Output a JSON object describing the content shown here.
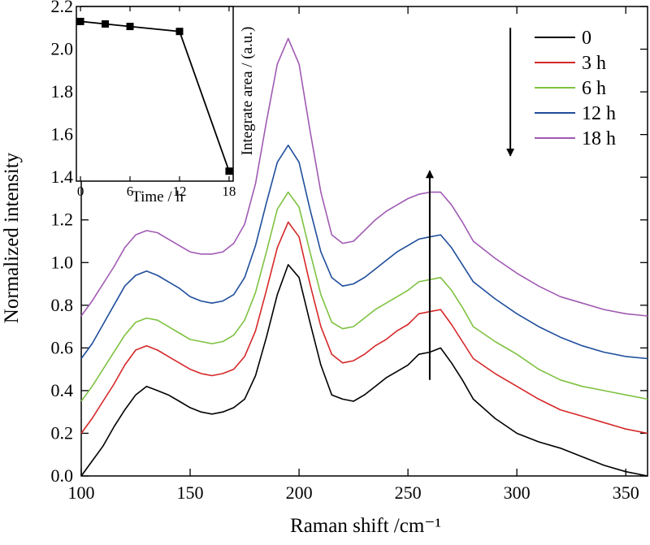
{
  "chart_data": [
    {
      "type": "line",
      "xlabel": "Raman shift /cm⁻¹",
      "ylabel": "Normalized intensity",
      "xlim": [
        100,
        360
      ],
      "ylim": [
        0.0,
        2.2
      ],
      "xticks": [
        100,
        150,
        200,
        250,
        300,
        350
      ],
      "xtick_labels": [
        "100",
        "150",
        "200",
        "250",
        "300",
        "350"
      ],
      "yticks": [
        0.0,
        0.2,
        0.4,
        0.6,
        0.8,
        1.0,
        1.2,
        1.4,
        1.6,
        1.8,
        2.0,
        2.2
      ],
      "ytick_labels": [
        "0.0",
        "0.2",
        "0.4",
        "0.6",
        "0.8",
        "1.0",
        "1.2",
        "1.4",
        "1.6",
        "1.8",
        "2.0",
        "2.2"
      ],
      "grid": false,
      "legend_position": "top-right",
      "x": [
        100,
        105,
        110,
        115,
        120,
        125,
        130,
        135,
        140,
        145,
        150,
        155,
        160,
        165,
        170,
        175,
        180,
        185,
        190,
        195,
        200,
        205,
        210,
        215,
        220,
        225,
        230,
        235,
        240,
        245,
        250,
        255,
        260,
        265,
        270,
        275,
        280,
        290,
        300,
        310,
        320,
        330,
        340,
        350,
        360
      ],
      "series": [
        {
          "name": "0",
          "color": "#000000",
          "values": [
            0.0,
            0.07,
            0.14,
            0.23,
            0.31,
            0.38,
            0.42,
            0.4,
            0.38,
            0.35,
            0.32,
            0.3,
            0.29,
            0.3,
            0.32,
            0.36,
            0.47,
            0.65,
            0.85,
            0.99,
            0.93,
            0.72,
            0.52,
            0.38,
            0.36,
            0.35,
            0.38,
            0.42,
            0.46,
            0.49,
            0.52,
            0.57,
            0.58,
            0.6,
            0.53,
            0.45,
            0.36,
            0.27,
            0.2,
            0.16,
            0.13,
            0.09,
            0.05,
            0.02,
            0.0
          ]
        },
        {
          "name": "3 h",
          "color": "#d62728",
          "values": [
            0.2,
            0.27,
            0.35,
            0.43,
            0.52,
            0.59,
            0.61,
            0.59,
            0.56,
            0.53,
            0.5,
            0.48,
            0.47,
            0.48,
            0.5,
            0.56,
            0.68,
            0.87,
            1.07,
            1.19,
            1.12,
            0.9,
            0.7,
            0.57,
            0.53,
            0.54,
            0.57,
            0.61,
            0.64,
            0.68,
            0.71,
            0.76,
            0.77,
            0.78,
            0.71,
            0.63,
            0.55,
            0.48,
            0.42,
            0.36,
            0.31,
            0.28,
            0.25,
            0.22,
            0.2
          ]
        },
        {
          "name": "6 h",
          "color": "#7fc241",
          "values": [
            0.35,
            0.42,
            0.5,
            0.58,
            0.66,
            0.72,
            0.74,
            0.73,
            0.7,
            0.67,
            0.64,
            0.63,
            0.62,
            0.63,
            0.66,
            0.73,
            0.86,
            1.05,
            1.25,
            1.33,
            1.26,
            1.05,
            0.85,
            0.72,
            0.69,
            0.7,
            0.74,
            0.78,
            0.81,
            0.84,
            0.87,
            0.91,
            0.92,
            0.93,
            0.87,
            0.79,
            0.7,
            0.63,
            0.57,
            0.5,
            0.45,
            0.42,
            0.4,
            0.38,
            0.36
          ]
        },
        {
          "name": "12 h",
          "color": "#1f4e9c",
          "values": [
            0.55,
            0.62,
            0.71,
            0.8,
            0.89,
            0.94,
            0.96,
            0.94,
            0.91,
            0.88,
            0.84,
            0.82,
            0.81,
            0.82,
            0.85,
            0.93,
            1.08,
            1.28,
            1.47,
            1.55,
            1.47,
            1.25,
            1.05,
            0.93,
            0.89,
            0.9,
            0.93,
            0.97,
            1.01,
            1.05,
            1.08,
            1.11,
            1.12,
            1.13,
            1.07,
            0.99,
            0.91,
            0.83,
            0.76,
            0.7,
            0.65,
            0.61,
            0.58,
            0.56,
            0.55
          ]
        },
        {
          "name": "18 h",
          "color": "#a05ab3",
          "values": [
            0.75,
            0.82,
            0.9,
            0.98,
            1.07,
            1.13,
            1.15,
            1.14,
            1.11,
            1.08,
            1.05,
            1.04,
            1.04,
            1.05,
            1.09,
            1.18,
            1.37,
            1.66,
            1.93,
            2.05,
            1.93,
            1.62,
            1.33,
            1.13,
            1.09,
            1.1,
            1.15,
            1.2,
            1.24,
            1.27,
            1.3,
            1.32,
            1.33,
            1.33,
            1.27,
            1.19,
            1.1,
            1.02,
            0.95,
            0.89,
            0.84,
            0.81,
            0.78,
            0.76,
            0.75
          ]
        }
      ],
      "annotations": {
        "up_arrow_x": 260,
        "up_arrow_y": [
          0.45,
          1.43
        ],
        "down_arrow_x": 297,
        "down_arrow_y": [
          2.1,
          1.5
        ]
      }
    },
    {
      "type": "line",
      "xlabel": "Time / h",
      "ylabel": "Integrate area / (a.u.)",
      "xlim": [
        -0.5,
        18.5
      ],
      "ylim": [
        1.5,
        2.2
      ],
      "xticks": [
        0,
        6,
        12,
        18
      ],
      "xtick_labels": [
        "0",
        "6",
        "12",
        "18"
      ],
      "x": [
        0,
        3,
        6,
        12,
        18
      ],
      "values": [
        2.14,
        2.13,
        2.12,
        2.1,
        1.54
      ],
      "color": "#000000",
      "grid": false
    }
  ]
}
